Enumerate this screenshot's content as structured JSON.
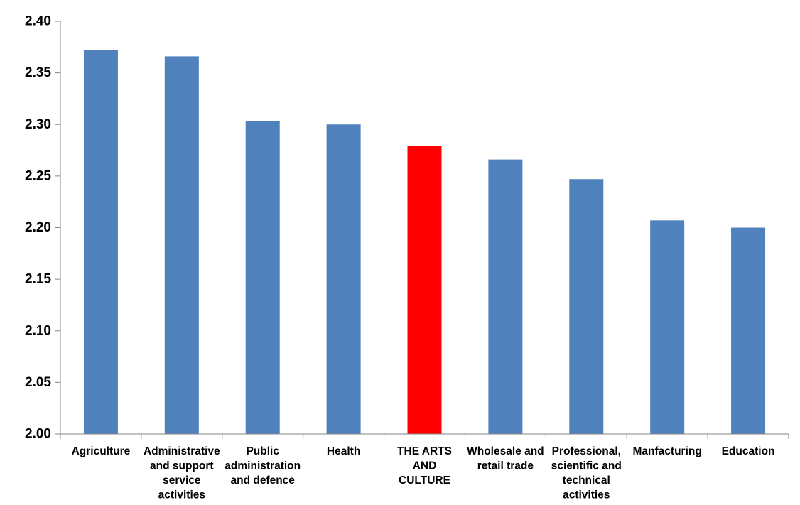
{
  "chart_data": {
    "type": "bar",
    "title": "",
    "xlabel": "",
    "ylabel": "",
    "ylim": [
      2.0,
      2.4
    ],
    "yticks": [
      "2.00",
      "2.05",
      "2.10",
      "2.15",
      "2.20",
      "2.25",
      "2.30",
      "2.35",
      "2.40"
    ],
    "ytick_values": [
      2.0,
      2.05,
      2.1,
      2.15,
      2.2,
      2.25,
      2.3,
      2.35,
      2.4
    ],
    "grid": false,
    "legend": "none",
    "categories": [
      [
        "Agriculture"
      ],
      [
        "Administrative",
        "and support",
        "service",
        "activities"
      ],
      [
        "Public",
        "administration",
        "and defence"
      ],
      [
        "Health"
      ],
      [
        "THE ARTS",
        "AND",
        "CULTURE"
      ],
      [
        "Wholesale and",
        "retail trade"
      ],
      [
        "Professional,",
        "scientific and",
        "technical",
        "activities"
      ],
      [
        "Manfacturing"
      ],
      [
        "Education"
      ]
    ],
    "values": [
      2.372,
      2.366,
      2.303,
      2.3,
      2.279,
      2.266,
      2.247,
      2.207,
      2.2
    ],
    "colors": {
      "default_bar": "#4f81bd",
      "highlight_bar": "#ff0000",
      "axis": "#868686"
    },
    "highlight_index": 4
  }
}
